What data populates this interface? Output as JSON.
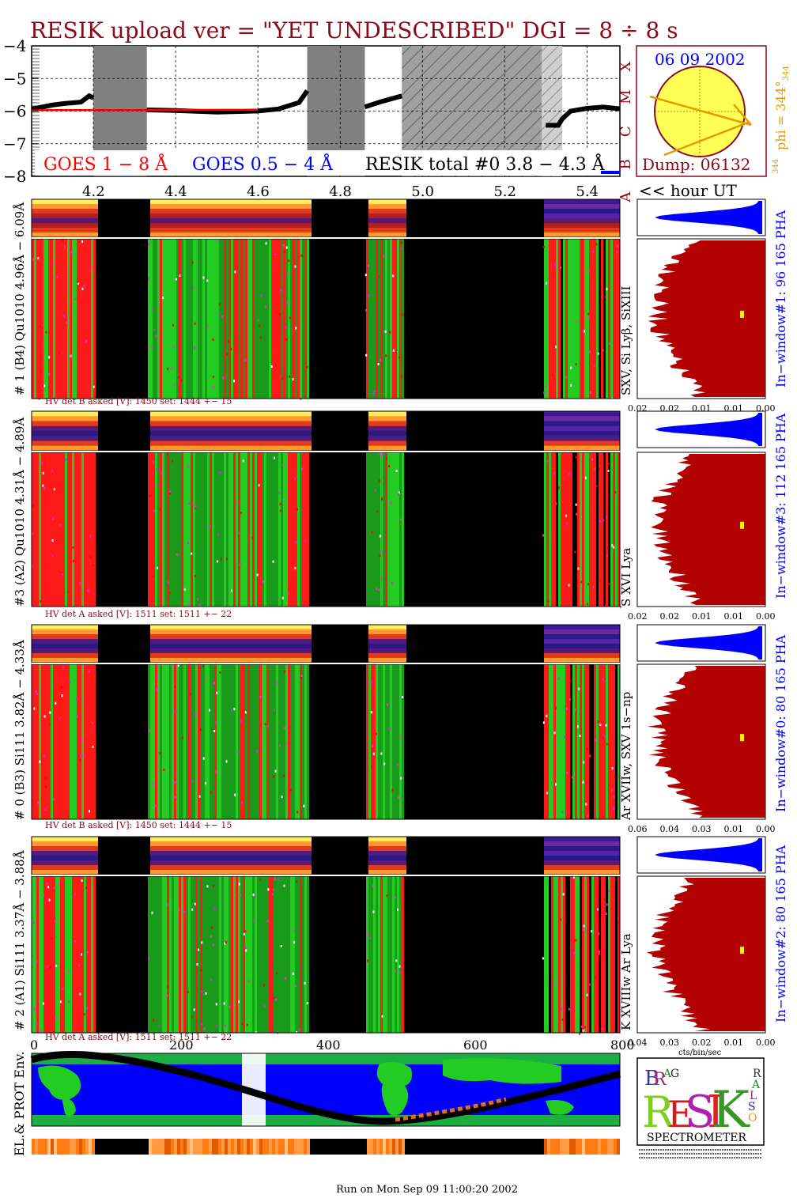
{
  "header": {
    "title": "RESIK upload ver = \"YET UNDESCRIBED\"  DGI =   8 ÷   8 s",
    "footer": "Run on Mon Sep 09 11:00:20 2002"
  },
  "colors": {
    "title": "#8b0a1a",
    "goes_red": "#ff0000",
    "goes_blue": "#0000ff",
    "spectrum_red": "#b30000",
    "pha_blue": "#0000ff",
    "orange": "#e69a00",
    "gap_gray": "#808080",
    "earth_green": "#22cc22",
    "ocean_blue": "#0000ff"
  },
  "goes_panel": {
    "legend_goes_long": "GOES 1 − 8 Å",
    "legend_goes_short": "GOES 0.5 − 4 Å",
    "legend_resik": "RESIK total #0  3.8 − 4.3 Å",
    "y_ticks": [
      "−4",
      "−5",
      "−6",
      "−7",
      "−8"
    ],
    "class_labels": [
      "X",
      "M",
      "C",
      "B",
      "A"
    ],
    "x_ticks": [
      "4.2",
      "4.4",
      "4.6",
      "4.8",
      "5.0",
      "5.2",
      "5.4"
    ],
    "x_axis_label": "<< hour UT"
  },
  "sun_panel": {
    "date": "06 09 2002",
    "phi_label": "phi = 344°",
    "phi_sub": "344",
    "phi_small": "344",
    "dump": "Dump: 06132"
  },
  "detectors": [
    {
      "side_label": "# 1 (B4) Qu1010 4.96Å − 6.09Å",
      "lines_label": "SXV, Si Lyβ, SiXIII",
      "window_label": "In−window#1:   96 165  PHA",
      "hv_label": "HV det B asked [V]:  1450 set:  1444  +−   15",
      "x_ticks": [
        "0.02",
        "0.02",
        "0.01",
        "0.01",
        "0.00"
      ]
    },
    {
      "side_label": "#3 (A2) Qu1010  4.31Å − 4.89Å",
      "lines_label": "S XVI Lya",
      "window_label": "In−window#3:  112 165  PHA",
      "hv_label": "HV det A asked [V]:  1511 set:  1511  +−   22",
      "x_ticks": [
        "0.02",
        "0.02",
        "0.01",
        "0.01",
        "0.00"
      ]
    },
    {
      "side_label": "# 0 (B3) Si111  3.82Å − 4.33Å",
      "lines_label": "Ar XVIIw,  SXV 1s−np",
      "window_label": "In−window#0:   80 165  PHA",
      "hv_label": "HV det B asked [V]:  1450 set:  1444  +−   15",
      "x_ticks": [
        "0.06",
        "0.04",
        "0.03",
        "0.01",
        "0.00"
      ]
    },
    {
      "side_label": "# 2 (A1) Si111  3.37Å − 3.88Å",
      "lines_label": "K XVIIIw  Ar Lya",
      "window_label": "In−window#2:   80 165  PHA",
      "hv_label": "HV det A asked [V]:  1511 set:  1511  +−   22",
      "x_ticks": [
        "0.04",
        "0.03",
        "0.02",
        "0.01",
        "0.00"
      ],
      "x_unit": "cts/bin/sec"
    }
  ],
  "bottom_panel": {
    "side_label": "EL.& PROT Env.",
    "x_ticks": [
      "0",
      "200",
      "400",
      "600",
      "800"
    ]
  },
  "logo": {
    "letters": [
      "B",
      "R",
      "A",
      "G",
      "R",
      "E",
      "S",
      "I",
      "K",
      "S",
      "O",
      "L",
      "A",
      "R"
    ],
    "subtitle": "SPECTROMETER"
  },
  "chart_data": {
    "type": "line",
    "title": "RESIK upload ver = \"YET UNDESCRIBED\"  DGI =   8 ÷   8 s",
    "xlabel": "<< hour UT",
    "ylabel": "",
    "xlim": [
      4.05,
      5.48
    ],
    "ylim": [
      -8,
      -4
    ],
    "x_ticks": [
      4.2,
      4.4,
      4.6,
      4.8,
      5.0,
      5.2,
      5.4
    ],
    "gaps_hours": [
      [
        4.2,
        4.33
      ],
      [
        4.72,
        4.86
      ],
      [
        4.95,
        5.29
      ],
      [
        5.29,
        5.34
      ]
    ],
    "series": [
      {
        "name": "RESIK total #0  3.8 − 4.3 Å",
        "x": [
          4.05,
          4.1,
          4.13,
          4.17,
          4.19,
          4.2,
          4.33,
          4.4,
          4.5,
          4.6,
          4.65,
          4.7,
          4.72,
          4.86,
          4.9,
          4.95,
          5.3,
          5.33,
          5.34,
          5.36,
          5.4,
          5.44,
          5.48
        ],
        "values": [
          -5.9,
          -5.85,
          -5.75,
          -5.7,
          -5.55,
          -5.6,
          -5.95,
          -6.0,
          -6.05,
          -6.0,
          -5.95,
          -5.75,
          -5.4,
          -5.85,
          -5.7,
          -5.55,
          -6.45,
          -6.4,
          -6.25,
          -6.0,
          -5.95,
          -5.9,
          -5.9
        ]
      },
      {
        "name": "GOES 1 − 8 Å",
        "x": [
          4.05,
          4.33,
          4.5,
          4.6
        ],
        "values": [
          -5.97,
          -5.97,
          -5.96,
          -5.96
        ]
      }
    ],
    "grid": true
  }
}
